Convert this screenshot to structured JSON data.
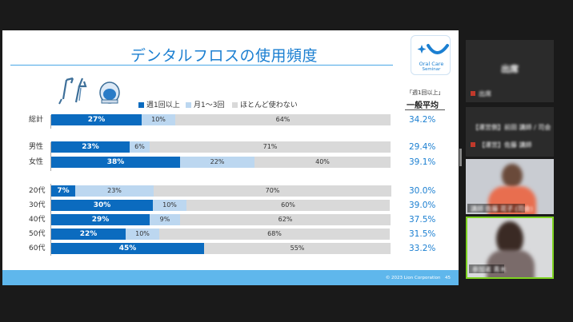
{
  "slide": {
    "title": "デンタルフロスの使用頻度",
    "logo_line1": "Oral Care",
    "logo_line2": "Seminar",
    "footer": "© 2023 Lion Corporation　45",
    "legend": [
      {
        "label": "週1回以上",
        "color": "#0b6bbf"
      },
      {
        "label": "月1～3回",
        "color": "#bcd7f0"
      },
      {
        "label": "ほとんど使わない",
        "color": "#d9d9d9"
      }
    ],
    "avg_header_line1": "「週1回以上」",
    "avg_header_line2": "一般平均",
    "rows": [
      {
        "label": "総計",
        "a": 27,
        "b": 10,
        "c": 64,
        "a_text": "27%",
        "b_text": "10%",
        "c_text": "64%",
        "avg": "34.2%"
      },
      {
        "label": "男性",
        "a": 23,
        "b": 6,
        "c": 71,
        "a_text": "23%",
        "b_text": "6%",
        "c_text": "71%",
        "avg": "29.4%"
      },
      {
        "label": "女性",
        "a": 38,
        "b": 22,
        "c": 40,
        "a_text": "38%",
        "b_text": "22%",
        "c_text": "40%",
        "avg": "39.1%"
      },
      {
        "label": "20代",
        "a": 7,
        "b": 23,
        "c": 70,
        "a_text": "7%",
        "b_text": "23%",
        "c_text": "70%",
        "avg": "30.0%"
      },
      {
        "label": "30代",
        "a": 30,
        "b": 10,
        "c": 60,
        "a_text": "30%",
        "b_text": "10%",
        "c_text": "60%",
        "avg": "39.0%"
      },
      {
        "label": "40代",
        "a": 29,
        "b": 9,
        "c": 62,
        "a_text": "29%",
        "b_text": "9%",
        "c_text": "62%",
        "avg": "37.5%"
      },
      {
        "label": "50代",
        "a": 22,
        "b": 10,
        "c": 68,
        "a_text": "22%",
        "b_text": "10%",
        "c_text": "68%",
        "avg": "31.5%"
      },
      {
        "label": "60代",
        "a": 45,
        "b": 0,
        "c": 55,
        "a_text": "45%",
        "b_text": "",
        "c_text": "55%",
        "avg": "33.2%"
      }
    ]
  },
  "participants": {
    "tile1_label": "出席",
    "tile1_name": "出席",
    "tile2_name": "【運営側】前田 講師 / 司会",
    "tile2_sub": "【運営】佐藤 講師",
    "tile3_name": "講師 佐藤 花子 (司会)",
    "tile4_name": "参加者 青木"
  },
  "colors": {
    "accent": "#1b7fd1",
    "footer": "#5fb7ec"
  }
}
